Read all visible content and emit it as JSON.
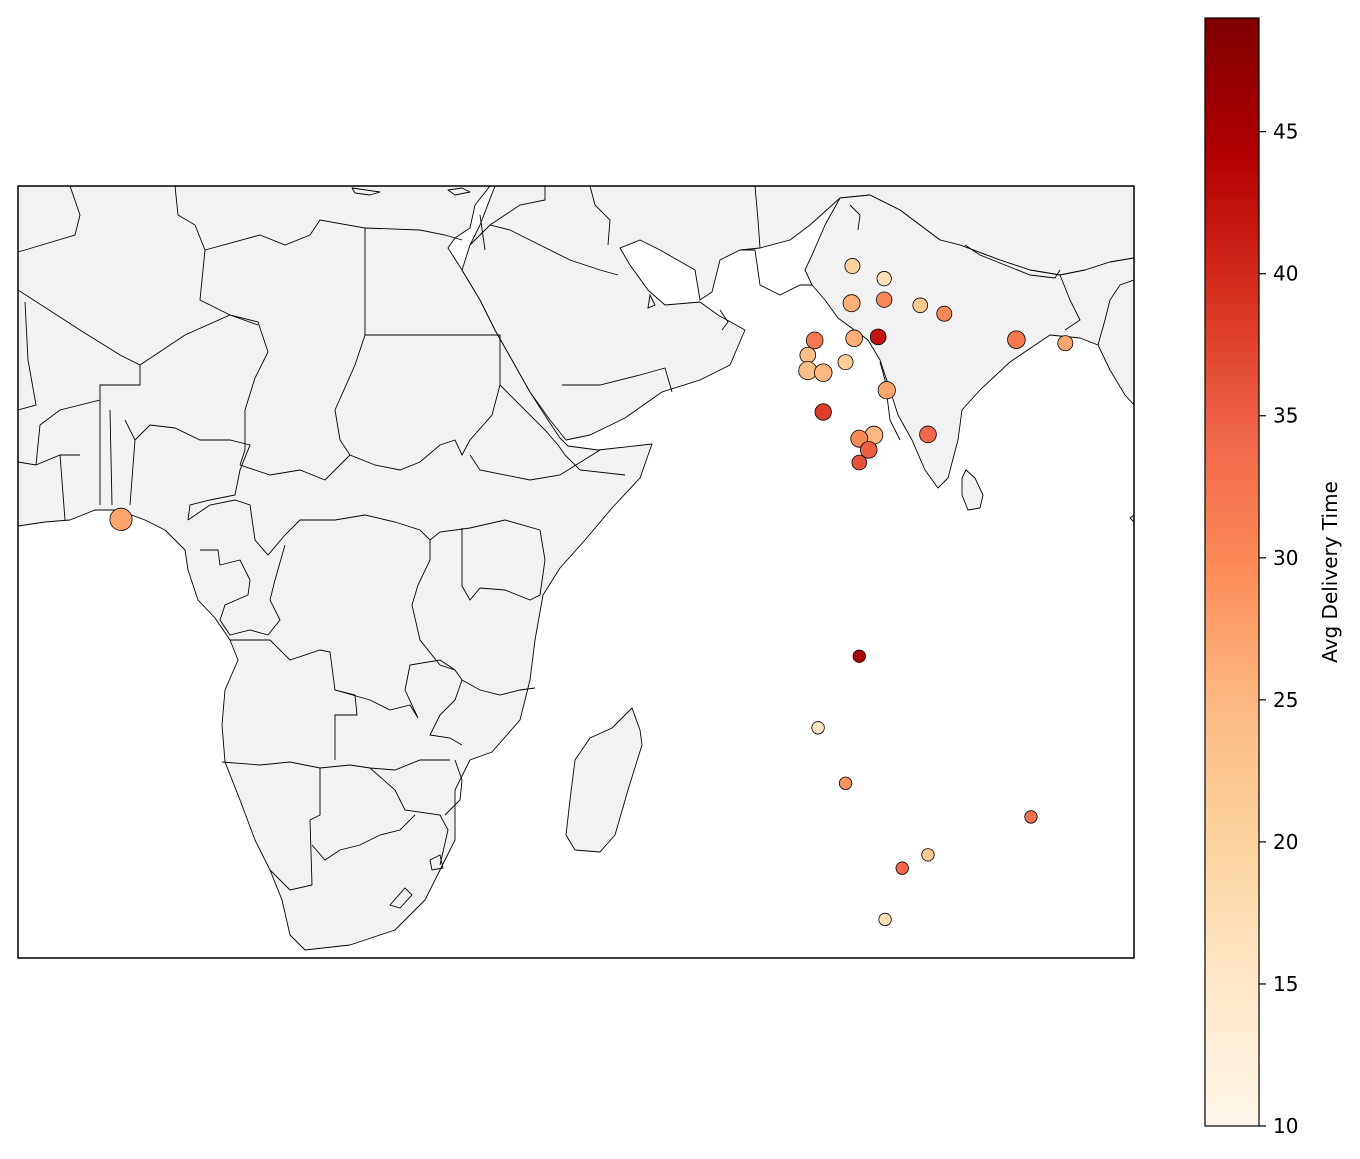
{
  "chart_data": {
    "type": "scatter",
    "title": "",
    "region": "Africa, Arabian Peninsula, India and Indian Ocean",
    "colorbar": {
      "label": "Avg Delivery Time",
      "min": 10,
      "max": 49,
      "ticks": [
        10,
        15,
        20,
        25,
        30,
        35,
        40,
        45
      ],
      "colormap": "OrRd",
      "colors": [
        "#fff7ec",
        "#fee8c8",
        "#fdd49e",
        "#fdbb84",
        "#fc8d59",
        "#ef6548",
        "#d7301f",
        "#b30000",
        "#7f0000"
      ]
    },
    "points": [
      {
        "lon": 77.2,
        "lat": 28.6,
        "value": 20,
        "size": 110
      },
      {
        "lon": 80.9,
        "lat": 26.8,
        "value": 17,
        "size": 100
      },
      {
        "lon": 77.1,
        "lat": 23.3,
        "value": 26,
        "size": 140
      },
      {
        "lon": 80.9,
        "lat": 23.8,
        "value": 30,
        "size": 115
      },
      {
        "lon": 85.1,
        "lat": 23.0,
        "value": 22,
        "size": 105
      },
      {
        "lon": 87.9,
        "lat": 21.8,
        "value": 30,
        "size": 110
      },
      {
        "lon": 72.8,
        "lat": 18.0,
        "value": 32,
        "size": 135
      },
      {
        "lon": 77.4,
        "lat": 18.3,
        "value": 26,
        "size": 135
      },
      {
        "lon": 80.2,
        "lat": 18.5,
        "value": 42,
        "size": 120
      },
      {
        "lon": 96.3,
        "lat": 18.1,
        "value": 32,
        "size": 150
      },
      {
        "lon": 102.0,
        "lat": 17.6,
        "value": 27,
        "size": 110
      },
      {
        "lon": 72.0,
        "lat": 15.9,
        "value": 24,
        "size": 120
      },
      {
        "lon": 76.4,
        "lat": 14.9,
        "value": 21,
        "size": 110
      },
      {
        "lon": 72.0,
        "lat": 13.7,
        "value": 24,
        "size": 160
      },
      {
        "lon": 73.8,
        "lat": 13.4,
        "value": 25,
        "size": 150
      },
      {
        "lon": 81.2,
        "lat": 10.9,
        "value": 27,
        "size": 145
      },
      {
        "lon": 73.8,
        "lat": 7.8,
        "value": 38,
        "size": 130
      },
      {
        "lon": 79.7,
        "lat": 4.5,
        "value": 25,
        "size": 155
      },
      {
        "lon": 78.0,
        "lat": 4.0,
        "value": 30,
        "size": 140
      },
      {
        "lon": 86.0,
        "lat": 4.6,
        "value": 34,
        "size": 135
      },
      {
        "lon": 79.1,
        "lat": 2.4,
        "value": 35,
        "size": 135
      },
      {
        "lon": 78.0,
        "lat": 0.6,
        "value": 36,
        "size": 105
      },
      {
        "lon": -8.0,
        "lat": -7.5,
        "value": 27,
        "size": 240
      },
      {
        "lon": 78.0,
        "lat": -27.0,
        "value": 45,
        "size": 75
      },
      {
        "lon": 73.2,
        "lat": -37.2,
        "value": 15,
        "size": 75
      },
      {
        "lon": 76.4,
        "lat": -45.1,
        "value": 29,
        "size": 75
      },
      {
        "lon": 98.0,
        "lat": -49.9,
        "value": 33,
        "size": 75
      },
      {
        "lon": 86.0,
        "lat": -55.3,
        "value": 22,
        "size": 75
      },
      {
        "lon": 83.0,
        "lat": -57.2,
        "value": 34,
        "size": 75
      },
      {
        "lon": 81.0,
        "lat": -64.5,
        "value": 17,
        "size": 75
      }
    ]
  }
}
